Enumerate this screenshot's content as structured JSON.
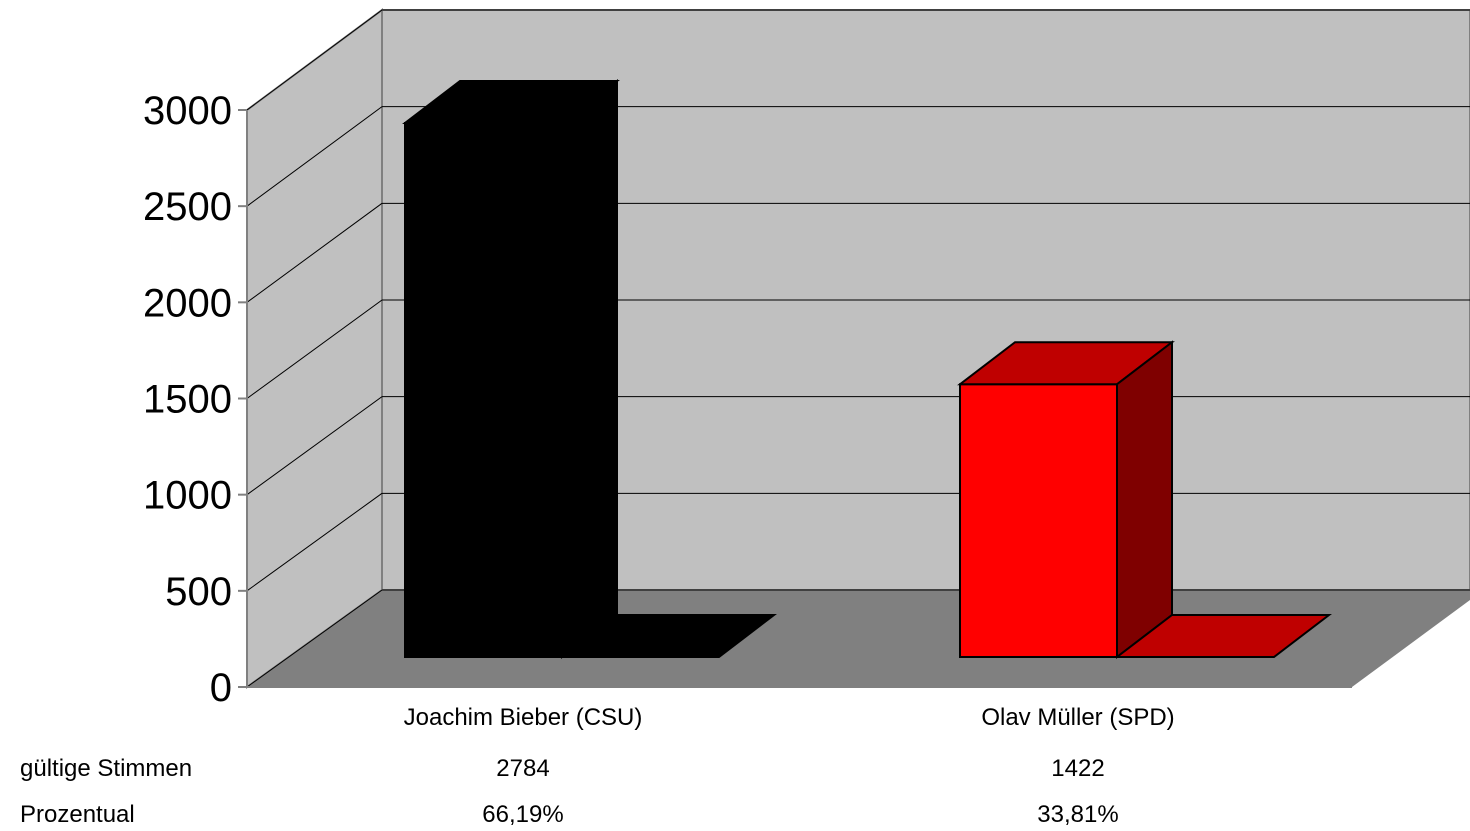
{
  "chart_data": {
    "type": "bar",
    "style": "3d-column",
    "categories": [
      "Joachim Bieber (CSU)",
      "Olav Müller (SPD)"
    ],
    "values": [
      2784,
      1422
    ],
    "colors": [
      "#000000",
      "#ff0000"
    ],
    "side_colors": [
      "#000000",
      "#7f0000"
    ],
    "top_colors": [
      "#000000",
      "#bf0000"
    ],
    "ylim": [
      0,
      3000
    ],
    "yticks": [
      0,
      500,
      1000,
      1500,
      2000,
      2500,
      3000
    ],
    "grid": true,
    "wall_color": "#c0c0c0",
    "floor_color": "#808080",
    "data_table": {
      "rows": [
        {
          "label": "gültige Stimmen",
          "values": [
            "2784",
            "1422"
          ]
        },
        {
          "label": "Prozentual",
          "values": [
            "66,19%",
            "33,81%"
          ]
        }
      ]
    }
  }
}
